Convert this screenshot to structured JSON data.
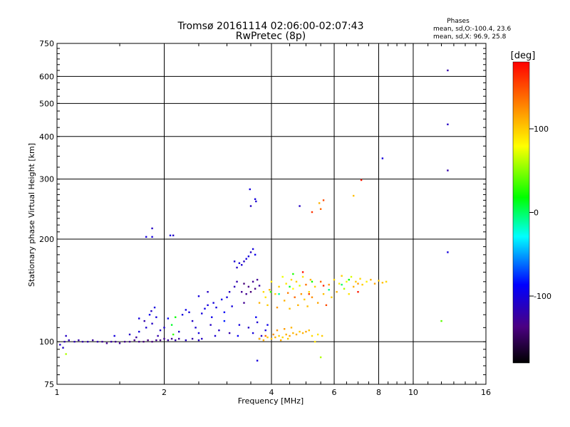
{
  "chart_data": {
    "type": "scatter",
    "title": "Tromsø 20161114 02:06:00-02:07:43",
    "subtitle": "RwPretec (8p)",
    "xlabel": "Frequency [MHz]",
    "ylabel": "Stationary phase Virtual Height [km]",
    "x_scale": "log",
    "y_scale": "log",
    "xlim": [
      1,
      16
    ],
    "ylim": [
      75,
      750
    ],
    "x_ticks": [
      1,
      2,
      4,
      6,
      8,
      10,
      16
    ],
    "x_tick_labels": [
      "1",
      "2",
      "4",
      "6",
      "8",
      "10",
      "16"
    ],
    "x_grid": [
      2,
      4,
      6,
      8,
      10
    ],
    "y_ticks": [
      75,
      100,
      200,
      300,
      400,
      500,
      600,
      750
    ],
    "y_tick_labels": [
      "75",
      "100",
      "200",
      "300",
      "400",
      "500",
      "600",
      "750"
    ],
    "y_grid": [
      100,
      200,
      300,
      400,
      500,
      600
    ],
    "grid": true,
    "legend_box": {
      "title": "Phases",
      "line1": "mean, sd,O:-100.4, 23.6",
      "line2": "mean, sd,X:  96.9, 25.8"
    },
    "colorbar": {
      "title": "[deg]",
      "range": [
        -180,
        180
      ],
      "ticks": [
        -100,
        0,
        100
      ],
      "tick_labels": [
        "-100",
        "0",
        "100"
      ]
    },
    "points": [
      [
        1.02,
        98,
        -110
      ],
      [
        1.04,
        96,
        -110
      ],
      [
        1.05,
        100,
        -120
      ],
      [
        1.06,
        104,
        -110
      ],
      [
        1.06,
        92,
        60
      ],
      [
        1.08,
        101,
        -115
      ],
      [
        1.12,
        100,
        -118
      ],
      [
        1.15,
        101,
        -120
      ],
      [
        1.18,
        100,
        -122
      ],
      [
        1.22,
        100,
        -120
      ],
      [
        1.26,
        101,
        -125
      ],
      [
        1.3,
        100,
        -120
      ],
      [
        1.34,
        100,
        -128
      ],
      [
        1.38,
        99,
        -130
      ],
      [
        1.42,
        100,
        -125
      ],
      [
        1.46,
        100,
        -130
      ],
      [
        1.5,
        99,
        -128
      ],
      [
        1.55,
        100,
        -132
      ],
      [
        1.6,
        100,
        -130
      ],
      [
        1.65,
        101,
        -135
      ],
      [
        1.7,
        100,
        -130
      ],
      [
        1.75,
        100,
        -140
      ],
      [
        1.8,
        101,
        -135
      ],
      [
        1.85,
        100,
        -138
      ],
      [
        1.9,
        101,
        -130
      ],
      [
        1.95,
        101,
        -135
      ],
      [
        2.0,
        102,
        -130
      ],
      [
        2.05,
        101,
        -125
      ],
      [
        2.1,
        102,
        -130
      ],
      [
        2.15,
        101,
        -120
      ],
      [
        2.2,
        102,
        -125
      ],
      [
        2.3,
        101,
        -110
      ],
      [
        2.4,
        102,
        -120
      ],
      [
        2.5,
        101,
        -110
      ],
      [
        1.45,
        104,
        -100
      ],
      [
        1.6,
        105,
        -110
      ],
      [
        1.7,
        107,
        -100
      ],
      [
        1.78,
        110,
        -105
      ],
      [
        1.85,
        113,
        -110
      ],
      [
        1.9,
        118,
        -100
      ],
      [
        1.84,
        123,
        -110
      ],
      [
        1.88,
        126,
        -100
      ],
      [
        1.76,
        115,
        -120
      ],
      [
        2.0,
        110,
        -105
      ],
      [
        1.95,
        108,
        -110
      ],
      [
        1.7,
        117,
        -100
      ],
      [
        1.82,
        120,
        -95
      ],
      [
        1.92,
        104,
        -120
      ],
      [
        1.67,
        103,
        -125
      ],
      [
        2.05,
        117,
        -90
      ],
      [
        2.1,
        112,
        10
      ],
      [
        2.15,
        118,
        20
      ],
      [
        2.2,
        107,
        -110
      ],
      [
        2.12,
        105,
        30
      ],
      [
        2.25,
        120,
        -100
      ],
      [
        2.3,
        124,
        -95
      ],
      [
        2.35,
        122,
        -100
      ],
      [
        2.4,
        115,
        -110
      ],
      [
        2.45,
        110,
        -105
      ],
      [
        2.5,
        106,
        -100
      ],
      [
        2.55,
        121,
        -100
      ],
      [
        2.6,
        125,
        -95
      ],
      [
        2.65,
        128,
        -100
      ],
      [
        2.7,
        112,
        -110
      ],
      [
        2.75,
        130,
        -100
      ],
      [
        2.8,
        126,
        -100
      ],
      [
        2.85,
        108,
        -110
      ],
      [
        2.9,
        133,
        -95
      ],
      [
        2.95,
        122,
        -90
      ],
      [
        3.0,
        135,
        -100
      ],
      [
        3.05,
        140,
        -110
      ],
      [
        3.1,
        127,
        -100
      ],
      [
        3.15,
        145,
        -115
      ],
      [
        3.2,
        150,
        -120
      ],
      [
        3.22,
        104,
        -90
      ],
      [
        3.25,
        112,
        -100
      ],
      [
        3.05,
        106,
        -120
      ],
      [
        2.78,
        104,
        -105
      ],
      [
        2.55,
        102,
        -110
      ],
      [
        2.5,
        136,
        -100
      ],
      [
        2.65,
        140,
        -110
      ],
      [
        2.72,
        118,
        -95
      ],
      [
        2.95,
        115,
        -80
      ],
      [
        3.35,
        130,
        -130
      ],
      [
        3.3,
        140,
        -130
      ],
      [
        3.35,
        148,
        -140
      ],
      [
        3.4,
        138,
        -130
      ],
      [
        3.45,
        145,
        -135
      ],
      [
        3.5,
        140,
        -140
      ],
      [
        3.55,
        150,
        -130
      ],
      [
        3.6,
        143,
        -135
      ],
      [
        3.65,
        152,
        -130
      ],
      [
        3.7,
        146,
        -125
      ],
      [
        3.2,
        165,
        -110
      ],
      [
        3.25,
        170,
        -100
      ],
      [
        3.3,
        168,
        -105
      ],
      [
        3.35,
        172,
        -110
      ],
      [
        3.4,
        175,
        -100
      ],
      [
        3.45,
        178,
        -100
      ],
      [
        3.5,
        183,
        -110
      ],
      [
        3.55,
        187,
        -100
      ],
      [
        3.6,
        180,
        -95
      ],
      [
        3.15,
        172,
        -105
      ],
      [
        3.45,
        110,
        -110
      ],
      [
        3.55,
        106,
        -100
      ],
      [
        3.65,
        114,
        -105
      ],
      [
        3.75,
        104,
        -110
      ],
      [
        3.85,
        108,
        -100
      ],
      [
        3.62,
        118,
        -90
      ],
      [
        3.7,
        102,
        -110
      ],
      [
        3.9,
        112,
        -95
      ],
      [
        3.5,
        250,
        -110
      ],
      [
        3.48,
        280,
        -100
      ],
      [
        3.6,
        262,
        -100
      ],
      [
        3.62,
        258,
        -105
      ],
      [
        3.65,
        88,
        -100
      ],
      [
        1.85,
        215,
        -110
      ],
      [
        1.85,
        203,
        -100
      ],
      [
        1.78,
        203,
        -100
      ],
      [
        2.12,
        205,
        -110
      ],
      [
        2.08,
        205,
        -100
      ],
      [
        3.7,
        102,
        105
      ],
      [
        3.8,
        101,
        110
      ],
      [
        3.9,
        103,
        100
      ],
      [
        4.0,
        102,
        105
      ],
      [
        4.1,
        103,
        110
      ],
      [
        4.2,
        104,
        100
      ],
      [
        4.3,
        103,
        95
      ],
      [
        4.4,
        105,
        110
      ],
      [
        4.5,
        104,
        115
      ],
      [
        4.6,
        106,
        108
      ],
      [
        4.7,
        105,
        112
      ],
      [
        4.8,
        107,
        100
      ],
      [
        4.9,
        106,
        110
      ],
      [
        5.0,
        107,
        115
      ],
      [
        5.1,
        108,
        105
      ],
      [
        4.15,
        108,
        120
      ],
      [
        4.35,
        109,
        118
      ],
      [
        4.55,
        110,
        108
      ],
      [
        4.25,
        101,
        112
      ],
      [
        4.45,
        102,
        100
      ],
      [
        3.85,
        104,
        140
      ],
      [
        4.05,
        105,
        125
      ],
      [
        5.2,
        104,
        95
      ],
      [
        5.4,
        105,
        90
      ],
      [
        5.55,
        104,
        100
      ],
      [
        3.7,
        130,
        110
      ],
      [
        3.8,
        140,
        95
      ],
      [
        3.85,
        135,
        90
      ],
      [
        3.9,
        128,
        100
      ],
      [
        3.95,
        142,
        110
      ],
      [
        4.0,
        150,
        85
      ],
      [
        4.1,
        138,
        95
      ],
      [
        4.15,
        126,
        120
      ],
      [
        4.2,
        145,
        100
      ],
      [
        4.3,
        155,
        75
      ],
      [
        4.35,
        132,
        110
      ],
      [
        4.4,
        148,
        90
      ],
      [
        4.45,
        139,
        130
      ],
      [
        4.5,
        125,
        105
      ],
      [
        4.55,
        152,
        95
      ],
      [
        4.6,
        143,
        80
      ],
      [
        4.65,
        135,
        140
      ],
      [
        4.7,
        150,
        100
      ],
      [
        4.75,
        128,
        110
      ],
      [
        4.8,
        146,
        70
      ],
      [
        4.85,
        138,
        120
      ],
      [
        4.9,
        155,
        90
      ],
      [
        4.95,
        133,
        100
      ],
      [
        5.0,
        147,
        135
      ],
      [
        5.05,
        127,
        105
      ],
      [
        5.1,
        140,
        95
      ],
      [
        5.15,
        152,
        110
      ],
      [
        5.2,
        135,
        125
      ],
      [
        5.3,
        145,
        100
      ],
      [
        5.4,
        130,
        115
      ],
      [
        5.5,
        150,
        140
      ],
      [
        5.6,
        138,
        105
      ],
      [
        5.7,
        128,
        150
      ],
      [
        5.8,
        147,
        120
      ],
      [
        5.9,
        135,
        100
      ],
      [
        6.0,
        152,
        95
      ],
      [
        6.1,
        140,
        110
      ],
      [
        6.2,
        148,
        85
      ],
      [
        6.3,
        156,
        100
      ],
      [
        6.4,
        143,
        60
      ],
      [
        6.5,
        150,
        75
      ],
      [
        6.6,
        138,
        90
      ],
      [
        6.7,
        155,
        70
      ],
      [
        6.8,
        145,
        110
      ],
      [
        6.9,
        150,
        100
      ],
      [
        7.0,
        148,
        120
      ],
      [
        7.1,
        153,
        95
      ],
      [
        7.2,
        147,
        100
      ],
      [
        7.4,
        150,
        85
      ],
      [
        7.6,
        152,
        110
      ],
      [
        7.8,
        148,
        115
      ],
      [
        8.0,
        151,
        100
      ],
      [
        8.2,
        149,
        105
      ],
      [
        8.4,
        150,
        95
      ],
      [
        4.2,
        138,
        -10
      ],
      [
        4.5,
        145,
        10
      ],
      [
        5.2,
        150,
        20
      ],
      [
        5.8,
        142,
        -5
      ],
      [
        6.3,
        147,
        0
      ],
      [
        6.6,
        152,
        15
      ],
      [
        5.1,
        138,
        160
      ],
      [
        5.6,
        146,
        165
      ],
      [
        7.0,
        140,
        170
      ],
      [
        4.9,
        160,
        175
      ],
      [
        3.98,
        140,
        30
      ],
      [
        4.6,
        158,
        25
      ],
      [
        4.8,
        250,
        -110
      ],
      [
        5.2,
        240,
        160
      ],
      [
        5.45,
        255,
        110
      ],
      [
        5.5,
        245,
        140
      ],
      [
        5.6,
        260,
        150
      ],
      [
        6.8,
        268,
        105
      ],
      [
        7.15,
        298,
        170
      ],
      [
        8.2,
        345,
        -100
      ],
      [
        5.5,
        90,
        60
      ],
      [
        5.3,
        100,
        90
      ],
      [
        12.5,
        625,
        -120
      ],
      [
        12.5,
        434,
        -110
      ],
      [
        12.5,
        318,
        -120
      ],
      [
        12.5,
        183,
        -100
      ],
      [
        12.0,
        115,
        40
      ]
    ]
  }
}
